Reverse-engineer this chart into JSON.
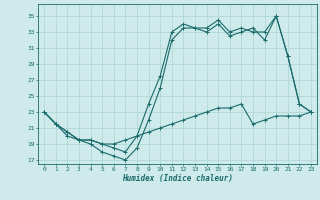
{
  "xlabel": "Humidex (Indice chaleur)",
  "xlim": [
    -0.5,
    23.5
  ],
  "ylim": [
    16.5,
    36.5
  ],
  "yticks": [
    17,
    19,
    21,
    23,
    25,
    27,
    29,
    31,
    33,
    35
  ],
  "xticks": [
    0,
    1,
    2,
    3,
    4,
    5,
    6,
    7,
    8,
    9,
    10,
    11,
    12,
    13,
    14,
    15,
    16,
    17,
    18,
    19,
    20,
    21,
    22,
    23
  ],
  "bg_color": "#ceeaea",
  "grid_color": "#b0d8d8",
  "line_color": "#1a6b6b",
  "line1_x": [
    0,
    1,
    2,
    3,
    4,
    5,
    6,
    7,
    8,
    9,
    10,
    11,
    12,
    13,
    14,
    15,
    16,
    17,
    18,
    19,
    20,
    21,
    22,
    23
  ],
  "line1_y": [
    23,
    21.5,
    20.5,
    19.5,
    19,
    18,
    17.5,
    17,
    18.5,
    22,
    26,
    32,
    33.5,
    33.5,
    33,
    34,
    32.5,
    33,
    33.5,
    32,
    35,
    30,
    24,
    23
  ],
  "line2_x": [
    0,
    1,
    2,
    3,
    4,
    5,
    6,
    7,
    8,
    9,
    10,
    11,
    12,
    13,
    14,
    15,
    16,
    17,
    18,
    19,
    20,
    21,
    22,
    23
  ],
  "line2_y": [
    23,
    21.5,
    20.5,
    19.5,
    19.5,
    19,
    18.5,
    18,
    20,
    24,
    27.5,
    33,
    34,
    33.5,
    33.5,
    34.5,
    33,
    33.5,
    33,
    33,
    35,
    30,
    24,
    23
  ],
  "line3_x": [
    0,
    1,
    2,
    3,
    4,
    5,
    6,
    7,
    8,
    9,
    10,
    11,
    12,
    13,
    14,
    15,
    16,
    17,
    18,
    19,
    20,
    21,
    22,
    23
  ],
  "line3_y": [
    23,
    21.5,
    20,
    19.5,
    19.5,
    19,
    19,
    19.5,
    20,
    20.5,
    21,
    21.5,
    22,
    22.5,
    23,
    23.5,
    23.5,
    24,
    21.5,
    22,
    22.5,
    22.5,
    22.5,
    23
  ]
}
